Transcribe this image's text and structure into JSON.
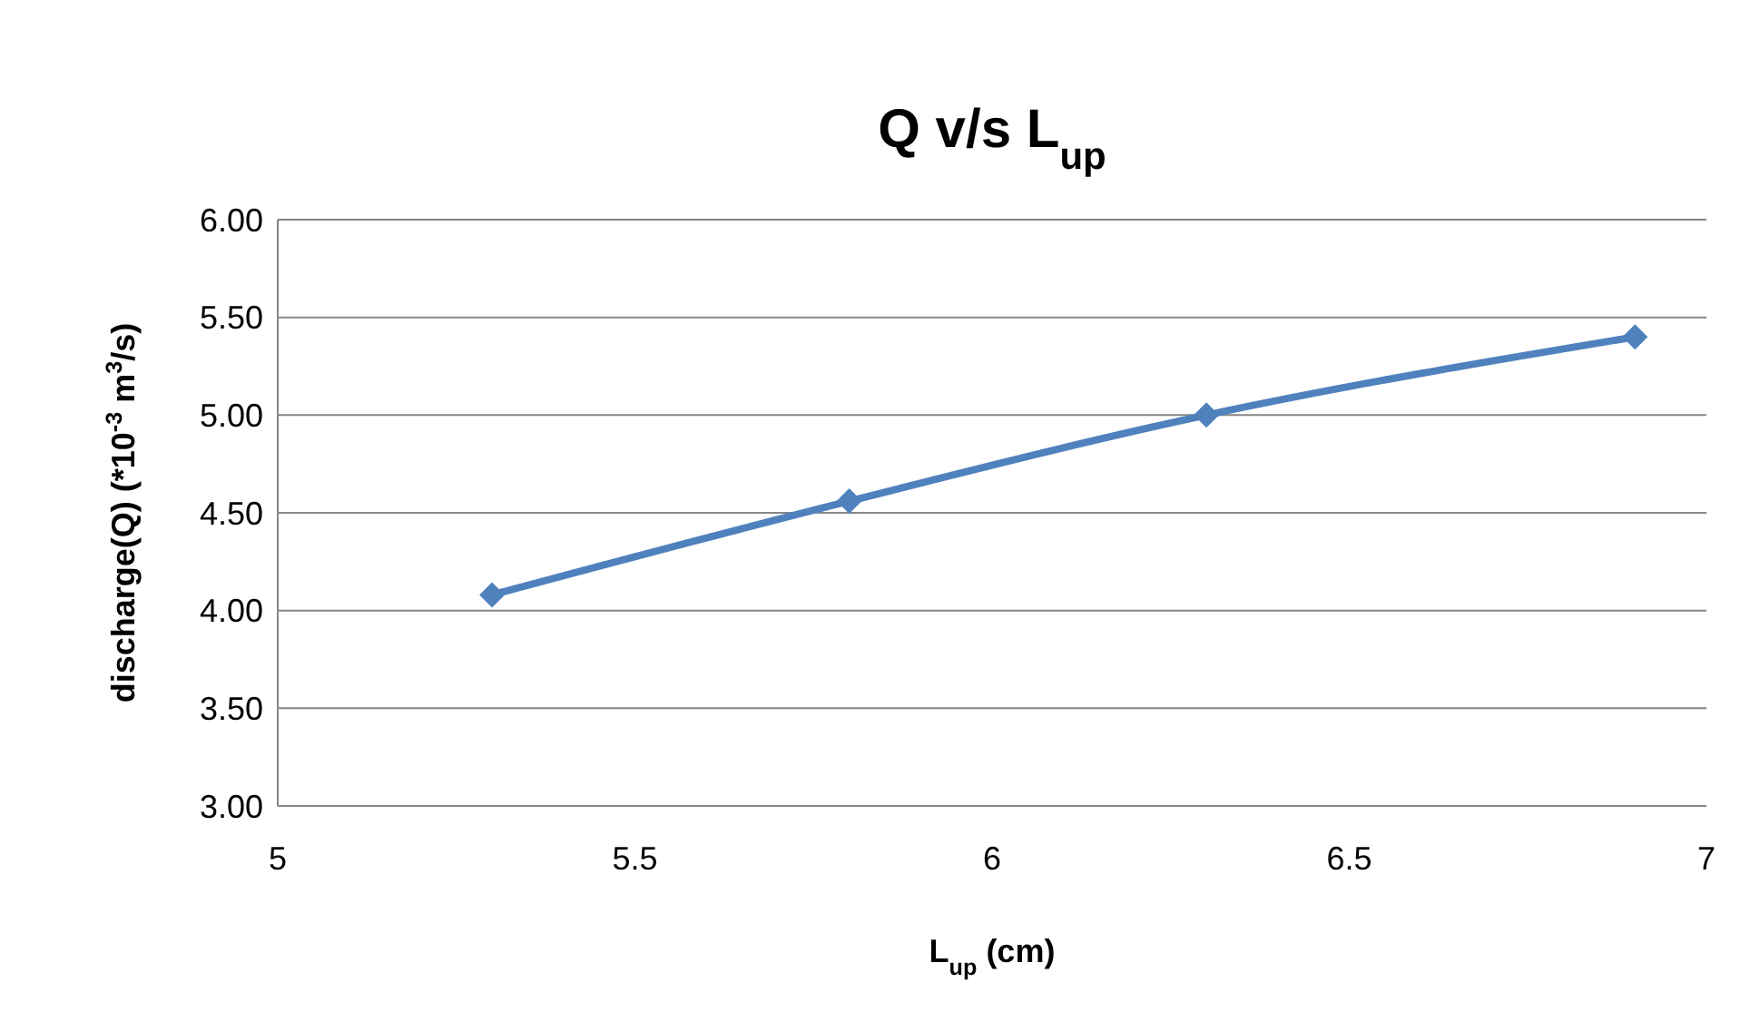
{
  "chart_data": {
    "type": "line",
    "title": "Q  v/s L$_{up}$",
    "xlabel": "L$_{up}$ (cm)",
    "ylabel": "discharge(Q) (*10$^{-3}$ m$^{3}$/s)",
    "x": [
      5.3,
      5.8,
      6.3,
      6.9
    ],
    "series": [
      {
        "color": "#4f81bd",
        "values": [
          4.08,
          4.56,
          5.0,
          5.4
        ]
      }
    ],
    "xlim": [
      5,
      7
    ],
    "xticks": [
      5,
      5.5,
      6,
      6.5,
      7
    ],
    "ylim": [
      3,
      6
    ],
    "yticks": [
      {
        "value": 3,
        "label": "3.00"
      },
      {
        "value": 3.5,
        "label": "3.50"
      },
      {
        "value": 4,
        "label": "4.00"
      },
      {
        "value": 4.5,
        "label": "4.50"
      },
      {
        "value": 5,
        "label": "5.00"
      },
      {
        "value": 5.5,
        "label": "5.50"
      },
      {
        "value": 6,
        "label": "6.00"
      }
    ],
    "grid": "y",
    "marker": "diamond",
    "line_style": "solid"
  }
}
